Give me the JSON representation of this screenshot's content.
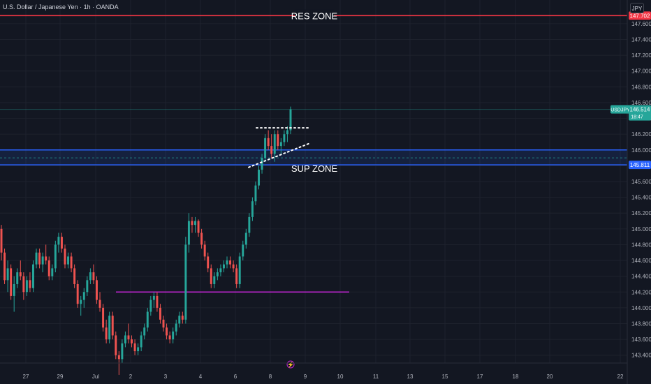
{
  "header": {
    "title": "U.S. Dollar / Japanese Yen · 1h · OANDA",
    "currency_button": "JPY"
  },
  "colors": {
    "background": "#131722",
    "up": "#26a69a",
    "down": "#ef5350",
    "res_line": "#f23645",
    "sup_line": "#2962ff",
    "purple_line": "#c026d3",
    "text": "#d1d4dc",
    "axis_text": "#b2b5be"
  },
  "annotations": {
    "res_zone_label": "RES ZONE",
    "sup_zone_label": "SUP ZONE",
    "res_price": "147.702",
    "sup_price": "145.811",
    "symbol_label": "USDJPY",
    "last_price": "146.514",
    "countdown": "18:47"
  },
  "chart_data": {
    "type": "candlestick",
    "symbol": "USDJPY",
    "ylim": [
      143.3,
      147.9
    ],
    "y_ticks": [
      "143.400",
      "143.600",
      "143.800",
      "144.000",
      "144.200",
      "144.400",
      "144.600",
      "144.800",
      "145.000",
      "145.200",
      "145.400",
      "145.600",
      "145.800",
      "146.000",
      "146.200",
      "146.400",
      "146.600",
      "146.800",
      "147.000",
      "147.200",
      "147.400",
      "147.600"
    ],
    "x_ticks": [
      "27",
      "29",
      "Jul",
      "2",
      "3",
      "4",
      "6",
      "8",
      "9",
      "10",
      "11",
      "13",
      "15",
      "17",
      "18",
      "20",
      "22"
    ],
    "horizontal_lines": [
      {
        "name": "RES ZONE",
        "price": 147.702
      },
      {
        "name": "SUP ZONE upper",
        "price": 146.0
      },
      {
        "name": "SUP ZONE lower",
        "price": 145.811
      },
      {
        "name": "support",
        "price": 144.2
      }
    ],
    "last_price": 146.514,
    "ohlc": [
      [
        145.0,
        145.05,
        144.6,
        144.7
      ],
      [
        144.7,
        144.75,
        144.3,
        144.35
      ],
      [
        144.35,
        144.6,
        144.2,
        144.5
      ],
      [
        144.5,
        144.55,
        144.1,
        144.15
      ],
      [
        144.15,
        144.4,
        143.95,
        144.3
      ],
      [
        144.3,
        144.5,
        144.25,
        144.45
      ],
      [
        144.45,
        144.6,
        144.35,
        144.4
      ],
      [
        144.4,
        144.45,
        144.1,
        144.2
      ],
      [
        144.2,
        144.4,
        144.15,
        144.35
      ],
      [
        144.35,
        144.45,
        144.2,
        144.25
      ],
      [
        144.25,
        144.6,
        144.2,
        144.55
      ],
      [
        144.55,
        144.75,
        144.5,
        144.7
      ],
      [
        144.7,
        144.75,
        144.5,
        144.55
      ],
      [
        144.55,
        144.7,
        144.45,
        144.65
      ],
      [
        144.65,
        144.8,
        144.55,
        144.6
      ],
      [
        144.6,
        144.65,
        144.35,
        144.4
      ],
      [
        144.4,
        144.55,
        144.35,
        144.5
      ],
      [
        144.5,
        144.85,
        144.45,
        144.8
      ],
      [
        144.8,
        144.95,
        144.7,
        144.9
      ],
      [
        144.9,
        144.95,
        144.7,
        144.75
      ],
      [
        144.75,
        144.8,
        144.5,
        144.55
      ],
      [
        144.55,
        144.7,
        144.5,
        144.65
      ],
      [
        144.65,
        144.7,
        144.45,
        144.5
      ],
      [
        144.5,
        144.55,
        144.25,
        144.3
      ],
      [
        144.3,
        144.35,
        144.0,
        144.05
      ],
      [
        144.05,
        144.15,
        143.9,
        144.1
      ],
      [
        144.1,
        144.25,
        144.0,
        144.2
      ],
      [
        144.2,
        144.4,
        144.15,
        144.35
      ],
      [
        144.35,
        144.5,
        144.3,
        144.45
      ],
      [
        144.45,
        144.55,
        144.3,
        144.35
      ],
      [
        144.35,
        144.4,
        144.05,
        144.1
      ],
      [
        144.1,
        144.2,
        143.95,
        144.0
      ],
      [
        144.0,
        144.05,
        143.7,
        143.75
      ],
      [
        143.75,
        143.85,
        143.55,
        143.6
      ],
      [
        143.6,
        143.95,
        143.55,
        143.9
      ],
      [
        143.9,
        143.95,
        143.6,
        143.65
      ],
      [
        143.65,
        143.7,
        143.35,
        143.4
      ],
      [
        143.4,
        143.45,
        143.15,
        143.35
      ],
      [
        143.35,
        143.6,
        143.3,
        143.55
      ],
      [
        143.55,
        143.7,
        143.5,
        143.65
      ],
      [
        143.65,
        143.8,
        143.55,
        143.6
      ],
      [
        143.6,
        143.65,
        143.5,
        143.55
      ],
      [
        143.55,
        143.6,
        143.4,
        143.45
      ],
      [
        143.45,
        143.55,
        143.4,
        143.5
      ],
      [
        143.5,
        143.7,
        143.45,
        143.65
      ],
      [
        143.65,
        143.8,
        143.6,
        143.75
      ],
      [
        143.75,
        144.0,
        143.7,
        143.95
      ],
      [
        143.95,
        144.15,
        143.9,
        144.1
      ],
      [
        144.1,
        144.2,
        144.0,
        144.15
      ],
      [
        144.15,
        144.2,
        143.95,
        144.0
      ],
      [
        144.0,
        144.05,
        143.8,
        143.85
      ],
      [
        143.85,
        143.9,
        143.7,
        143.75
      ],
      [
        143.75,
        143.8,
        143.6,
        143.65
      ],
      [
        143.65,
        143.7,
        143.55,
        143.6
      ],
      [
        143.6,
        143.75,
        143.55,
        143.7
      ],
      [
        143.7,
        143.85,
        143.65,
        143.8
      ],
      [
        143.8,
        143.95,
        143.75,
        143.9
      ],
      [
        143.9,
        143.95,
        143.8,
        143.85
      ],
      [
        143.85,
        144.9,
        143.8,
        144.8
      ],
      [
        144.8,
        145.2,
        144.7,
        145.1
      ],
      [
        145.1,
        145.15,
        144.95,
        145.05
      ],
      [
        145.05,
        145.15,
        144.95,
        145.1
      ],
      [
        145.1,
        145.12,
        144.9,
        144.95
      ],
      [
        144.95,
        145.0,
        144.75,
        144.8
      ],
      [
        144.8,
        144.85,
        144.6,
        144.65
      ],
      [
        144.65,
        144.7,
        144.45,
        144.5
      ],
      [
        144.5,
        144.55,
        144.25,
        144.3
      ],
      [
        144.3,
        144.45,
        144.25,
        144.4
      ],
      [
        144.4,
        144.5,
        144.35,
        144.45
      ],
      [
        144.45,
        144.55,
        144.4,
        144.5
      ],
      [
        144.5,
        144.6,
        144.45,
        144.55
      ],
      [
        144.55,
        144.65,
        144.5,
        144.6
      ],
      [
        144.6,
        144.65,
        144.5,
        144.55
      ],
      [
        144.55,
        144.6,
        144.45,
        144.5
      ],
      [
        144.5,
        144.55,
        144.25,
        144.3
      ],
      [
        144.3,
        144.7,
        144.25,
        144.65
      ],
      [
        144.65,
        144.85,
        144.6,
        144.8
      ],
      [
        144.8,
        145.0,
        144.75,
        144.95
      ],
      [
        144.95,
        145.2,
        144.9,
        145.15
      ],
      [
        145.15,
        145.4,
        145.1,
        145.35
      ],
      [
        145.35,
        145.6,
        145.3,
        145.55
      ],
      [
        145.55,
        145.8,
        145.5,
        145.75
      ],
      [
        145.75,
        145.95,
        145.7,
        145.9
      ],
      [
        145.9,
        146.2,
        145.85,
        146.15
      ],
      [
        146.15,
        146.25,
        146.0,
        146.05
      ],
      [
        146.05,
        146.2,
        145.9,
        145.95
      ],
      [
        145.95,
        146.25,
        145.85,
        146.2
      ],
      [
        146.2,
        146.25,
        146.0,
        146.05
      ],
      [
        146.05,
        146.15,
        145.95,
        146.1
      ],
      [
        146.1,
        146.25,
        146.05,
        146.2
      ],
      [
        146.2,
        146.3,
        146.1,
        146.25
      ],
      [
        146.25,
        146.55,
        146.2,
        146.514
      ]
    ]
  }
}
